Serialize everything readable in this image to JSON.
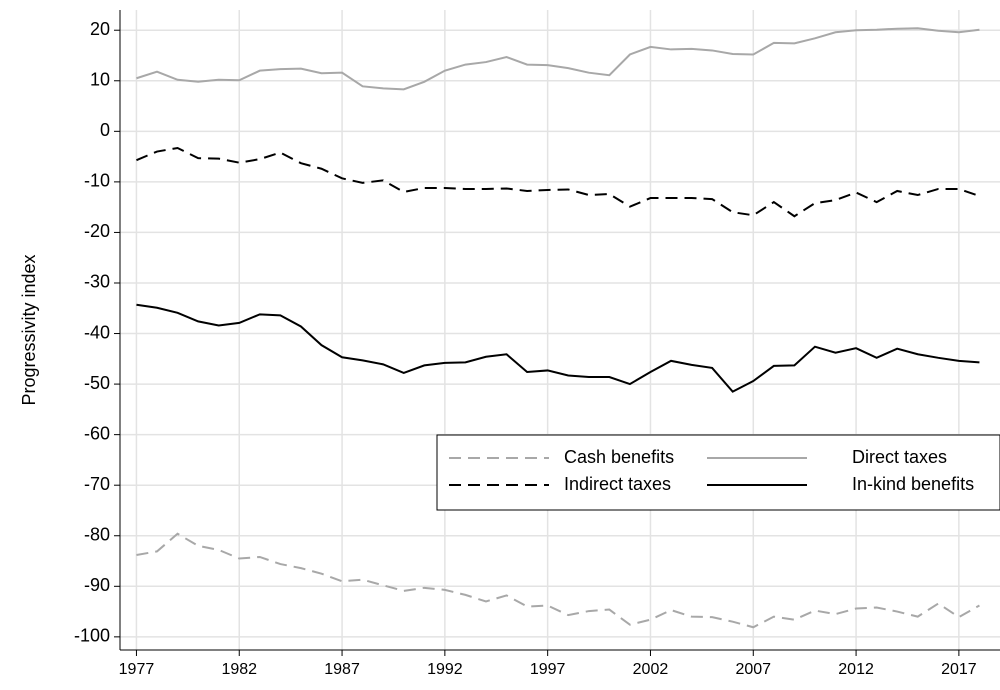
{
  "chart_data": {
    "type": "line",
    "y_label": "Progressivity index",
    "x": [
      1977,
      1978,
      1979,
      1980,
      1981,
      1982,
      1983,
      1984,
      1985,
      1986,
      1987,
      1988,
      1989,
      1990,
      1991,
      1992,
      1993,
      1994,
      1995,
      1996,
      1997,
      1998,
      1999,
      2000,
      2001,
      2002,
      2003,
      2004,
      2005,
      2006,
      2007,
      2008,
      2009,
      2010,
      2011,
      2012,
      2013,
      2014,
      2015,
      2016,
      2017,
      2018
    ],
    "xlim": [
      1976.2,
      2019
    ],
    "xticks": [
      1977,
      1982,
      1987,
      1992,
      1997,
      2002,
      2007,
      2012,
      2017
    ],
    "ylim": [
      -102.6,
      24
    ],
    "yticks": [
      20,
      10,
      0,
      -10,
      -20,
      -30,
      -40,
      -50,
      -60,
      -70,
      -80,
      -90,
      -100
    ],
    "grid": true,
    "legend_position": "lower right",
    "series": [
      {
        "name": "Cash benefits",
        "color": "#a8a8a8",
        "style": "dashed",
        "values": [
          -83.8,
          -83.1,
          -79.6,
          -82.0,
          -82.8,
          -84.5,
          -84.2,
          -85.6,
          -86.4,
          -87.5,
          -89.0,
          -88.7,
          -89.8,
          -90.9,
          -90.3,
          -90.7,
          -91.7,
          -93.0,
          -91.8,
          -94.0,
          -93.8,
          -95.7,
          -94.9,
          -94.6,
          -97.6,
          -96.6,
          -94.7,
          -96.0,
          -96.1,
          -97.0,
          -98.1,
          -96.0,
          -96.6,
          -94.8,
          -95.5,
          -94.4,
          -94.2,
          -95.0,
          -96.0,
          -93.4,
          -96.1,
          -93.8
        ]
      },
      {
        "name": "Direct taxes",
        "color": "#a8a8a8",
        "style": "solid",
        "values": [
          10.5,
          11.8,
          10.2,
          9.8,
          10.2,
          10.1,
          12.0,
          12.3,
          12.4,
          11.5,
          11.6,
          8.9,
          8.5,
          8.3,
          9.8,
          12.0,
          13.2,
          13.7,
          14.7,
          13.2,
          13.1,
          12.5,
          11.6,
          11.1,
          15.2,
          16.7,
          16.2,
          16.3,
          16.0,
          15.3,
          15.2,
          17.5,
          17.4,
          18.4,
          19.6,
          20.0,
          20.1,
          20.3,
          20.4,
          19.9,
          19.6,
          20.1
        ]
      },
      {
        "name": "Indirect taxes",
        "color": "#000000",
        "style": "dashed",
        "values": [
          -5.7,
          -4.0,
          -3.3,
          -5.3,
          -5.4,
          -6.2,
          -5.5,
          -4.2,
          -6.3,
          -7.4,
          -9.3,
          -10.2,
          -9.7,
          -12.0,
          -11.2,
          -11.2,
          -11.4,
          -11.4,
          -11.3,
          -11.8,
          -11.6,
          -11.5,
          -12.6,
          -12.4,
          -14.9,
          -13.2,
          -13.2,
          -13.2,
          -13.4,
          -16.0,
          -16.6,
          -14.0,
          -16.8,
          -14.2,
          -13.6,
          -12.1,
          -14.0,
          -11.8,
          -12.6,
          -11.4,
          -11.4,
          -12.8
        ]
      },
      {
        "name": "In-kind benefits",
        "color": "#000000",
        "style": "solid",
        "values": [
          -34.3,
          -34.9,
          -35.9,
          -37.6,
          -38.4,
          -37.9,
          -36.2,
          -36.4,
          -38.6,
          -42.3,
          -44.7,
          -45.3,
          -46.1,
          -47.8,
          -46.3,
          -45.8,
          -45.7,
          -44.6,
          -44.1,
          -47.6,
          -47.3,
          -48.3,
          -48.6,
          -48.6,
          -50.0,
          -47.6,
          -45.4,
          -46.2,
          -46.8,
          -51.5,
          -49.4,
          -46.4,
          -46.3,
          -42.6,
          -43.8,
          -42.9,
          -44.8,
          -43.0,
          -44.1,
          -44.8,
          -45.4,
          -45.7
        ]
      }
    ]
  }
}
